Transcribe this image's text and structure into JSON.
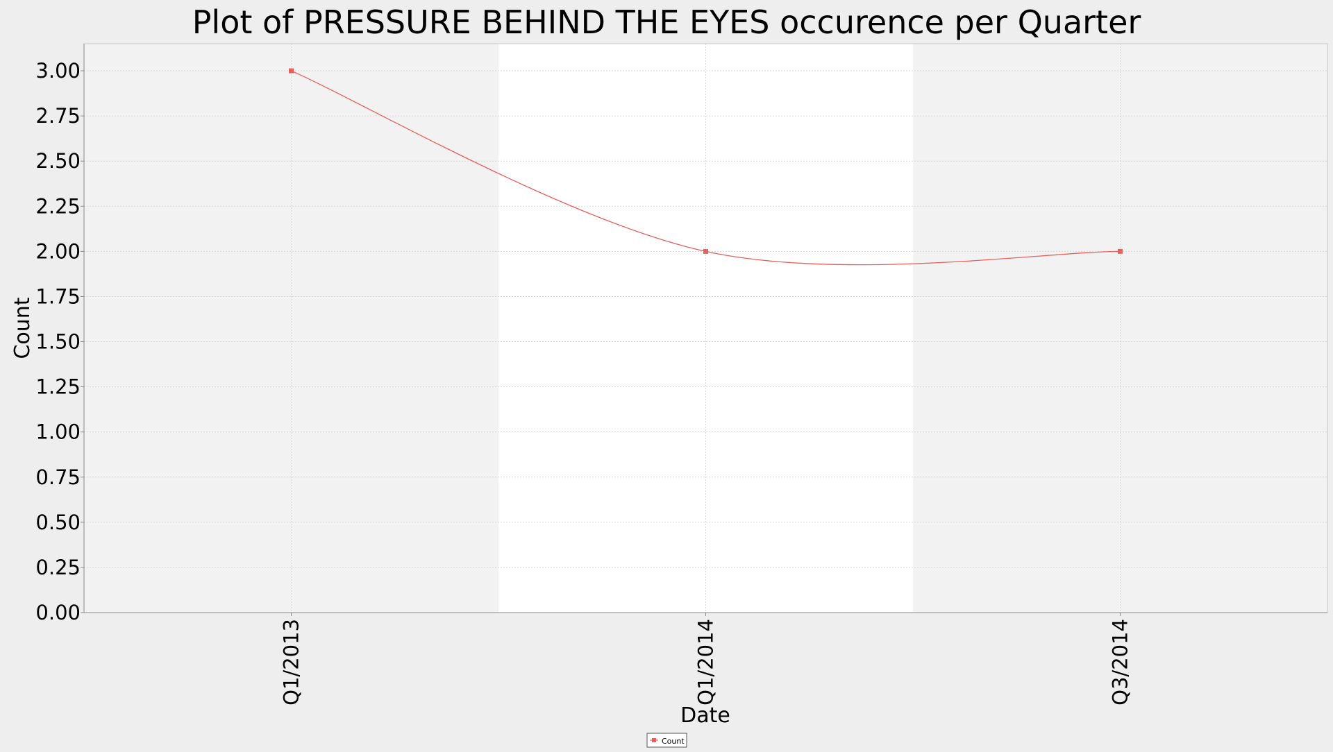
{
  "chart_data": {
    "type": "line",
    "title": "Plot of PRESSURE BEHIND THE EYES occurence per Quarter",
    "xlabel": "Date",
    "ylabel": "Count",
    "categories": [
      "Q1/2013",
      "Q1/2014",
      "Q3/2014"
    ],
    "series": [
      {
        "name": "Count",
        "values": [
          3.0,
          2.0,
          2.0
        ],
        "color": "#e8605c",
        "smooth": true
      }
    ],
    "ylim": [
      0,
      3.15
    ],
    "yticks": [
      "0.00",
      "0.25",
      "0.50",
      "0.75",
      "1.00",
      "1.25",
      "1.50",
      "1.75",
      "2.00",
      "2.25",
      "2.50",
      "2.75",
      "3.00"
    ],
    "grid": true,
    "alternating_bands": true,
    "legend": {
      "position": "bottom-center",
      "entries": [
        "Count"
      ]
    },
    "colors": {
      "page_background": "#eeeeee",
      "plot_band_shaded": "#f2f2f2",
      "plot_band_clear": "#ffffff",
      "grid": "#d8d8d8",
      "axis": "#888888",
      "series": "#e8605c"
    }
  }
}
